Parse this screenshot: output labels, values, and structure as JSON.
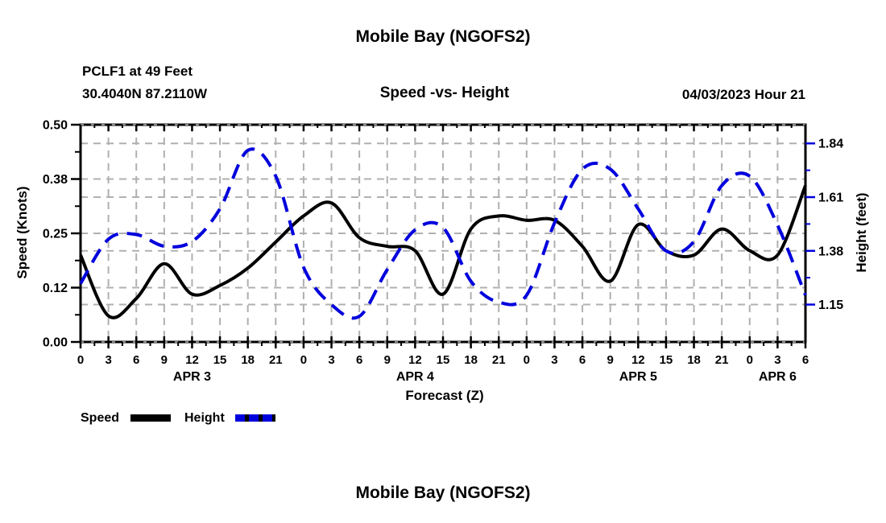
{
  "header": {
    "title": "Mobile Bay (NGOFS2)",
    "station_line1": "PCLF1 at 49 Feet",
    "station_line2": "30.4040N  87.2110W",
    "subtitle": "Speed -vs- Height",
    "datetime": "04/03/2023 Hour 21"
  },
  "footer": {
    "title": "Mobile Bay (NGOFS2)"
  },
  "legend": {
    "speed_label": "Speed",
    "height_label": "Height"
  },
  "colors": {
    "speed": "#000000",
    "height": "#0000dd",
    "grid": "#b0b0b0",
    "axis": "#000000",
    "axis_dash_overlay": "#8a8a8a"
  },
  "chart_data": {
    "type": "line",
    "title": "Speed -vs- Height",
    "xlabel": "Forecast (Z)",
    "ylabel_left": "Speed (Knots)",
    "ylabel_right": "Height (feet)",
    "grid": true,
    "legend_position": "below-left",
    "x_range": [
      0,
      78
    ],
    "x_hours": [
      0,
      3,
      6,
      9,
      12,
      15,
      18,
      21,
      24,
      27,
      30,
      33,
      36,
      39,
      42,
      45,
      48,
      51,
      54,
      57,
      60,
      63,
      66,
      69,
      72,
      75,
      78
    ],
    "x_tick_labels": [
      "0",
      "3",
      "6",
      "9",
      "12",
      "15",
      "18",
      "21",
      "0",
      "3",
      "6",
      "9",
      "12",
      "15",
      "18",
      "21",
      "0",
      "3",
      "6",
      "9",
      "12",
      "15",
      "18",
      "21",
      "0",
      "3",
      "6"
    ],
    "date_labels": [
      {
        "hour": 12,
        "label": "APR 3"
      },
      {
        "hour": 36,
        "label": "APR 4"
      },
      {
        "hour": 60,
        "label": "APR 5"
      },
      {
        "hour": 75,
        "label": "APR 6"
      }
    ],
    "y_left": {
      "min": 0,
      "max": 0.5,
      "ticks": [
        {
          "v": 0.0,
          "label": "0.00"
        },
        {
          "v": 0.125,
          "label": "0.12"
        },
        {
          "v": 0.25,
          "label": "0.25"
        },
        {
          "v": 0.375,
          "label": "0.38"
        },
        {
          "v": 0.5,
          "label": "0.50"
        }
      ]
    },
    "y_right": {
      "min": 0.99,
      "max": 1.92,
      "ticks": [
        {
          "v": 1.15,
          "label": "1.15"
        },
        {
          "v": 1.38,
          "label": "1.38"
        },
        {
          "v": 1.61,
          "label": "1.61"
        },
        {
          "v": 1.84,
          "label": "1.84"
        }
      ]
    },
    "series": [
      {
        "name": "Speed",
        "axis": "left",
        "color": "#000000",
        "dash": null,
        "values": [
          0.2,
          0.06,
          0.1,
          0.18,
          0.11,
          0.13,
          0.17,
          0.23,
          0.29,
          0.32,
          0.24,
          0.22,
          0.21,
          0.11,
          0.26,
          0.29,
          0.28,
          0.28,
          0.22,
          0.14,
          0.27,
          0.21,
          0.2,
          0.26,
          0.21,
          0.2,
          0.36
        ]
      },
      {
        "name": "Height",
        "axis": "right",
        "color": "#0000dd",
        "dash": [
          19,
          11
        ],
        "values": [
          1.24,
          1.43,
          1.45,
          1.4,
          1.42,
          1.56,
          1.81,
          1.7,
          1.31,
          1.15,
          1.1,
          1.3,
          1.47,
          1.48,
          1.25,
          1.16,
          1.19,
          1.5,
          1.73,
          1.73,
          1.56,
          1.38,
          1.42,
          1.66,
          1.7,
          1.49,
          1.19
        ]
      }
    ]
  }
}
